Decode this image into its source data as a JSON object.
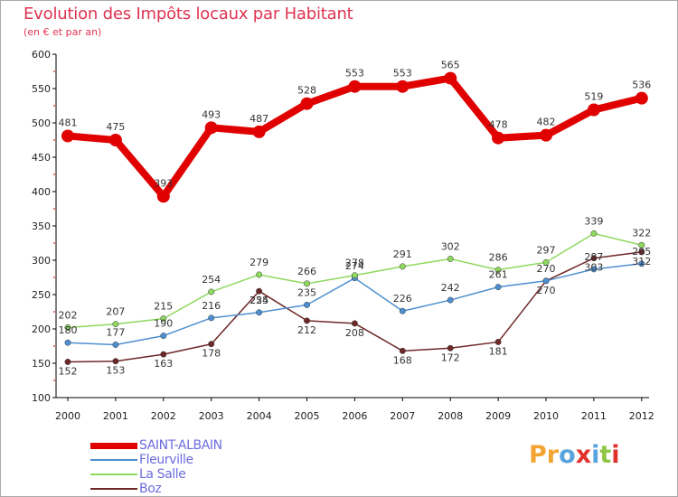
{
  "header": {
    "title": "Evolution des Impôts locaux par Habitant",
    "subtitle": "(en € et par an)"
  },
  "chart_data": {
    "type": "line",
    "title": "Evolution des Impôts locaux par Habitant",
    "subtitle": "(en € et par an)",
    "xlabel": "",
    "ylabel": "",
    "x": [
      "2000",
      "2001",
      "2002",
      "2003",
      "2004",
      "2005",
      "2006",
      "2007",
      "2008",
      "2009",
      "2010",
      "2011",
      "2012"
    ],
    "ylim": [
      100,
      600
    ],
    "yticks": [
      "100",
      "150",
      "200",
      "250",
      "300",
      "350",
      "400",
      "450",
      "500",
      "550",
      "600"
    ],
    "grid": false,
    "legend_position": "bottom-left",
    "series": [
      {
        "name": "SAINT-ALBAIN",
        "color": "#e00000",
        "values": [
          481,
          475,
          393,
          493,
          487,
          528,
          553,
          553,
          565,
          478,
          482,
          519,
          536
        ]
      },
      {
        "name": "Fleurville",
        "color": "#4d8fd0",
        "values": [
          180,
          177,
          190,
          216,
          224,
          235,
          274,
          226,
          242,
          261,
          270,
          287,
          295
        ]
      },
      {
        "name": "La Salle",
        "color": "#8fd860",
        "values": [
          202,
          207,
          215,
          254,
          279,
          266,
          278,
          291,
          302,
          286,
          297,
          339,
          322
        ]
      },
      {
        "name": "Boz",
        "color": "#6e2828",
        "values": [
          152,
          153,
          163,
          178,
          255,
          212,
          208,
          168,
          172,
          181,
          270,
          303,
          312
        ]
      }
    ]
  },
  "logo": {
    "text": "Proxiti",
    "colors": [
      "#f4a433",
      "#f4a433",
      "#5aa4de",
      "#e0312a",
      "#5aa4de",
      "#8fc645",
      "#e0312a"
    ]
  }
}
